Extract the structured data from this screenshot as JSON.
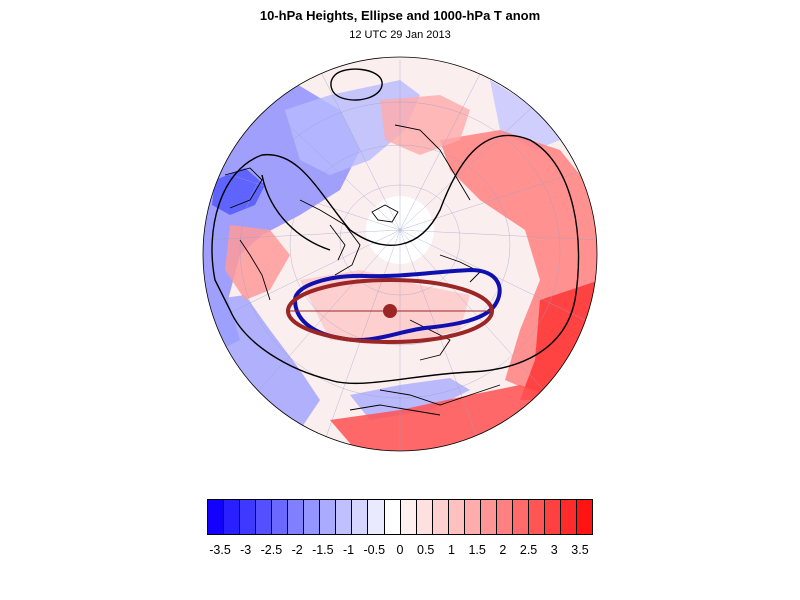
{
  "header": {
    "title": "10-hPa Heights, Ellipse and 1000-hPa T anom",
    "subtitle": "12 UTC 29 Jan 2013"
  },
  "colors": {
    "ellipse": "#9b2626",
    "vortex_contour": "#1010b0",
    "height_contours": "#000000",
    "negative_max": "#1400ff",
    "positive_max": "#ff1010"
  },
  "colorbar": {
    "colors": [
      "#1400ff",
      "#2a20ff",
      "#3f38ff",
      "#5550ff",
      "#6a68ff",
      "#8080ff",
      "#9595ff",
      "#aaaaff",
      "#c0c0ff",
      "#d5d5ff",
      "#eaeaff",
      "#ffffff",
      "#fff0f0",
      "#ffe0e0",
      "#ffd0d0",
      "#ffc0c0",
      "#ffacac",
      "#ff9696",
      "#ff8080",
      "#ff6a6a",
      "#ff5555",
      "#ff4040",
      "#ff2a2a",
      "#ff1414"
    ],
    "labels": [
      "-3.5",
      "-3",
      "-2.5",
      "-2",
      "-1.5",
      "-1",
      "-0.5",
      "0",
      "0.5",
      "1",
      "1.5",
      "2",
      "2.5",
      "3",
      "3.5"
    ]
  }
}
